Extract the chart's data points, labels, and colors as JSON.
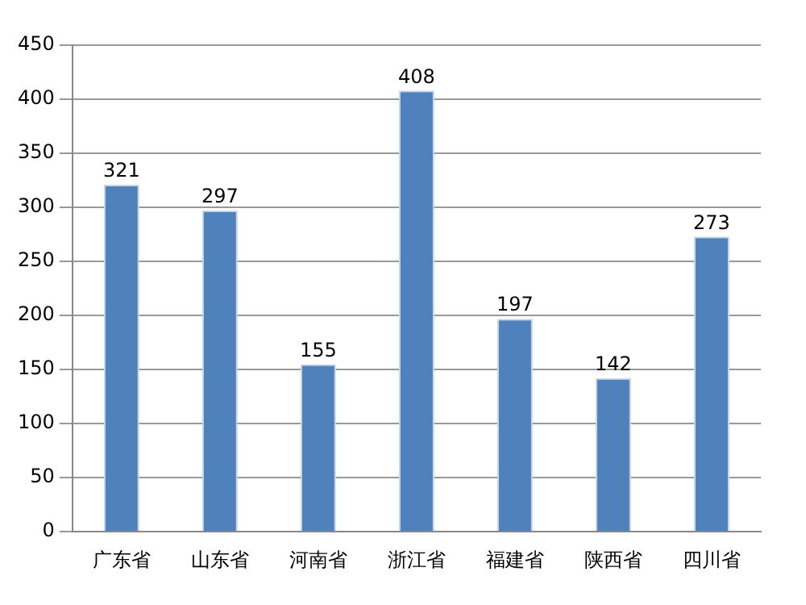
{
  "chart_data": {
    "type": "bar",
    "categories": [
      "广东省",
      "山东省",
      "河南省",
      "浙江省",
      "福建省",
      "陕西省",
      "四川省"
    ],
    "values": [
      321,
      297,
      155,
      408,
      197,
      142,
      273
    ],
    "color": "#4f81bd",
    "ylim": [
      0,
      450
    ],
    "yticks": [
      0,
      50,
      100,
      150,
      200,
      250,
      300,
      350,
      400,
      450
    ],
    "grid": "y",
    "data_labels": true
  }
}
